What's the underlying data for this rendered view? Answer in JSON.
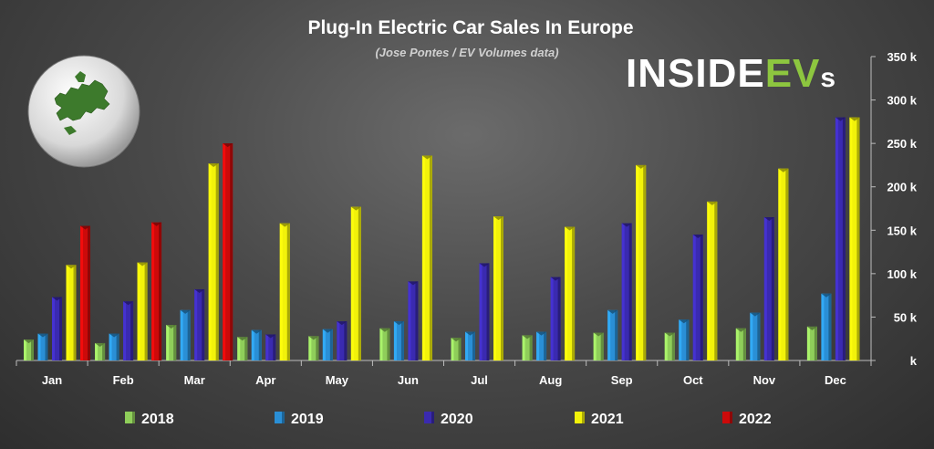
{
  "chart_data": {
    "type": "bar",
    "title": "Plug-In Electric Car Sales In Europe",
    "subtitle": "(Jose Pontes / EV Volumes data)",
    "brand": {
      "text_main": "INSIDE",
      "text_accent": "EV",
      "text_tail": "s",
      "accent_color": "#8dc63f"
    },
    "categories": [
      "Jan",
      "Feb",
      "Mar",
      "Apr",
      "May",
      "Jun",
      "Jul",
      "Aug",
      "Sep",
      "Oct",
      "Nov",
      "Dec"
    ],
    "series": [
      {
        "name": "2018",
        "color": "#8fce5a",
        "values": [
          24,
          20,
          41,
          27,
          28,
          37,
          26,
          29,
          32,
          32,
          37,
          39
        ]
      },
      {
        "name": "2019",
        "color": "#2a8fd6",
        "values": [
          31,
          31,
          58,
          35,
          36,
          45,
          33,
          33,
          58,
          47,
          55,
          77
        ]
      },
      {
        "name": "2020",
        "color": "#3a2ab0",
        "values": [
          73,
          68,
          82,
          30,
          45,
          91,
          112,
          96,
          158,
          145,
          165,
          280
        ]
      },
      {
        "name": "2021",
        "color": "#f2f20a",
        "values": [
          110,
          113,
          227,
          158,
          177,
          236,
          166,
          154,
          225,
          183,
          221,
          280
        ]
      },
      {
        "name": "2022",
        "color": "#cc0a0a",
        "values": [
          155,
          159,
          250,
          null,
          null,
          null,
          null,
          null,
          null,
          null,
          null,
          null
        ]
      }
    ],
    "ylim": [
      0,
      350
    ],
    "yticks": [
      0,
      50,
      100,
      150,
      200,
      250,
      300,
      350
    ],
    "ytick_labels": [
      "k",
      "50 k",
      "100 k",
      "150 k",
      "200 k",
      "250 k",
      "300 k",
      "350 k"
    ],
    "legend_position": "bottom",
    "grid": false
  }
}
